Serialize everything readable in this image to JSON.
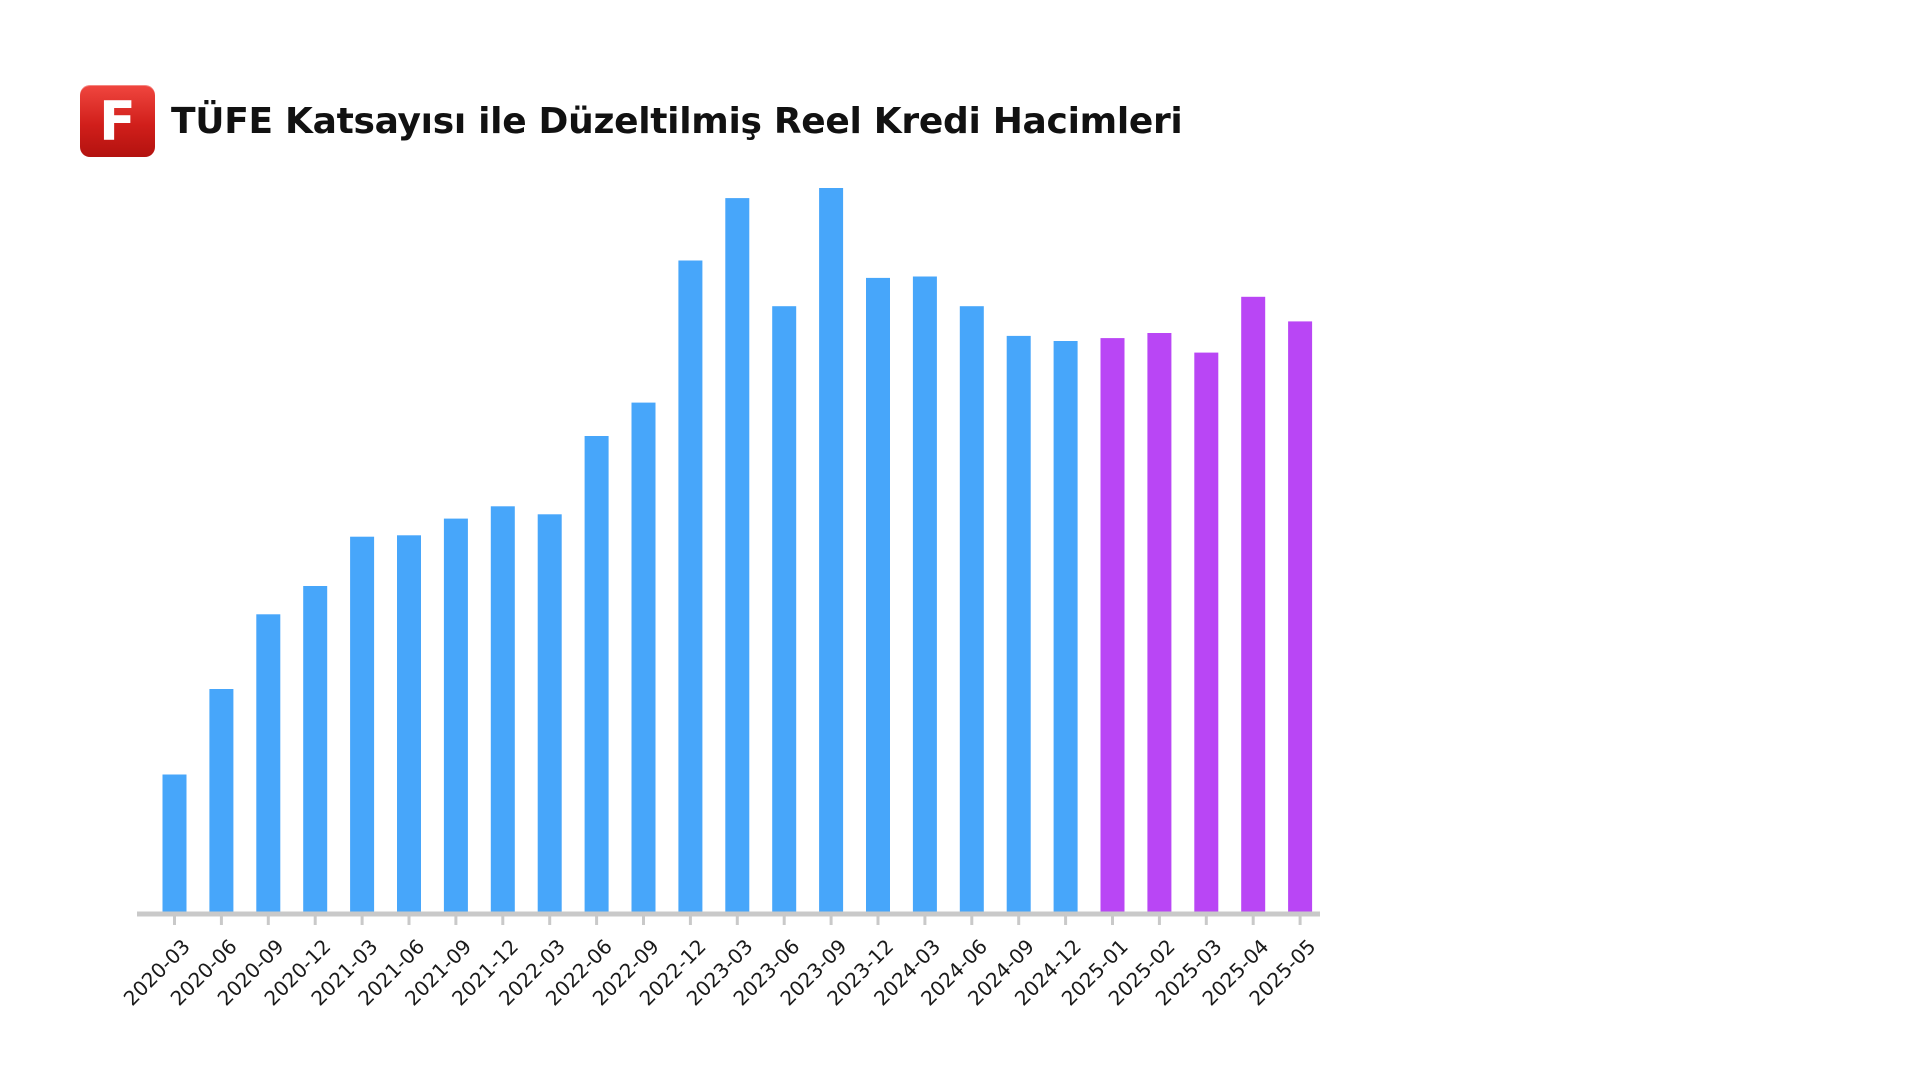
{
  "header": {
    "logo_letter": "F",
    "title": "TÜFE Katsayısı ile Düzeltilmiş Reel Kredi Hacimleri"
  },
  "colors": {
    "bar_blue": "#47a6fa",
    "bar_purple": "#b946f5",
    "axis": "#c9c9c9",
    "logo_red": "#d11f1b"
  },
  "chart_data": {
    "type": "bar",
    "title": "TÜFE Katsayısı ile Düzeltilmiş Reel Kredi Hacimleri",
    "xlabel": "",
    "ylabel": "",
    "y_axis_visible": false,
    "grid": false,
    "ylim": [
      0,
      100
    ],
    "categories": [
      "2020-03",
      "2020-06",
      "2020-09",
      "2020-12",
      "2021-03",
      "2021-06",
      "2021-09",
      "2021-12",
      "2022-03",
      "2022-06",
      "2022-09",
      "2022-12",
      "2023-03",
      "2023-06",
      "2023-09",
      "2023-12",
      "2024-03",
      "2024-06",
      "2024-09",
      "2024-12",
      "2025-01",
      "2025-02",
      "2025-03",
      "2025-04",
      "2025-05"
    ],
    "values": [
      19.1,
      30.9,
      41.2,
      45.1,
      51.9,
      52.1,
      54.4,
      56.1,
      55.0,
      65.8,
      70.4,
      90.0,
      98.6,
      83.7,
      100.0,
      87.6,
      87.8,
      83.7,
      79.6,
      78.9,
      79.3,
      80.0,
      77.3,
      85.0,
      81.6
    ],
    "bar_colors": [
      "#47a6fa",
      "#47a6fa",
      "#47a6fa",
      "#47a6fa",
      "#47a6fa",
      "#47a6fa",
      "#47a6fa",
      "#47a6fa",
      "#47a6fa",
      "#47a6fa",
      "#47a6fa",
      "#47a6fa",
      "#47a6fa",
      "#47a6fa",
      "#47a6fa",
      "#47a6fa",
      "#47a6fa",
      "#47a6fa",
      "#47a6fa",
      "#47a6fa",
      "#b946f5",
      "#b946f5",
      "#b946f5",
      "#b946f5",
      "#b946f5"
    ],
    "tick_label_rotation": -45
  }
}
